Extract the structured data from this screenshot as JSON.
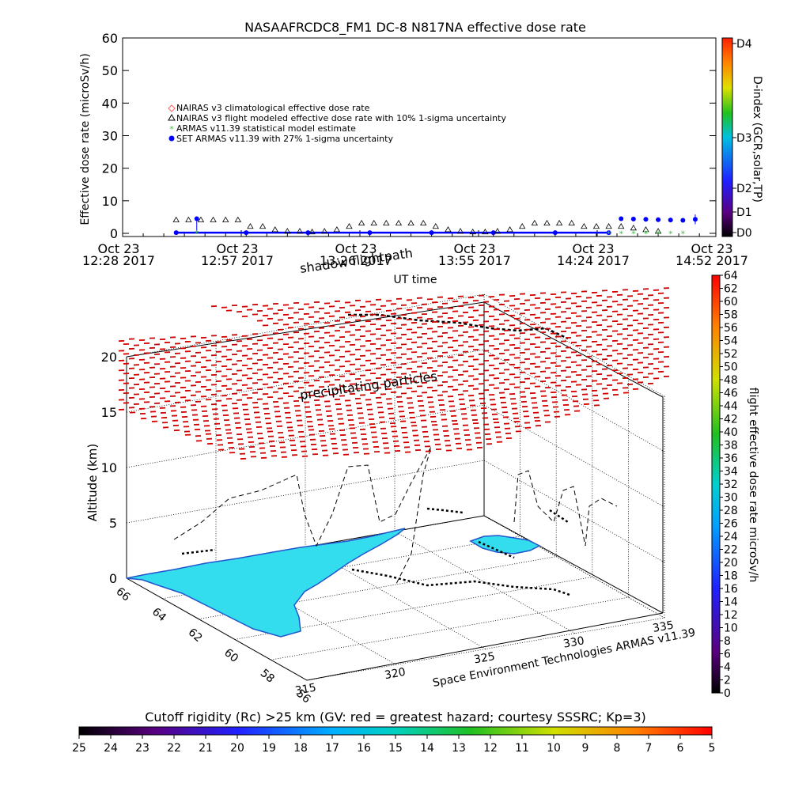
{
  "top_chart": {
    "title": "NASAAFRCDC8_FM1 DC-8    N817NA effective dose rate",
    "ylabel": "Effective dose rate (microSv/h)",
    "xlabel": "UT time",
    "y_ticks": [
      "0",
      "10",
      "20",
      "30",
      "40",
      "50",
      "60"
    ],
    "x_ticks": [
      {
        "line1": "Oct 23",
        "line2": "12:28 2017"
      },
      {
        "line1": "Oct 23",
        "line2": "12:57 2017"
      },
      {
        "line1": "Oct 23",
        "line2": "13:26 2017"
      },
      {
        "line1": "Oct 23",
        "line2": "13:55 2017"
      },
      {
        "line1": "Oct 23",
        "line2": "14:24 2017"
      },
      {
        "line1": "Oct 23",
        "line2": "14:52 2017"
      }
    ],
    "legend": [
      {
        "label": "NAIRAS v3 climatological effective dose rate",
        "color": "#ff6060",
        "marker": "diamond"
      },
      {
        "label": "NAIRAS v3 flight modeled effective dose rate with 10% 1-sigma uncertainty",
        "color": "#000000",
        "marker": "triangle"
      },
      {
        "label": "ARMAS v11.39 statistical model estimate",
        "color": "#40c040",
        "marker": "star"
      },
      {
        "label": "SET ARMAS v11.39 with 27% 1-sigma uncertainty",
        "color": "#0000ff",
        "marker": "dot"
      }
    ],
    "dindex_label": "D-index (GCR,solar,TP)",
    "dindex_ticks": [
      "D0",
      "D1",
      "D2",
      "D3",
      "D4"
    ]
  },
  "chart_data": [
    {
      "type": "scatter",
      "title": "NASAAFRCDC8_FM1 DC-8    N817NA effective dose rate",
      "xlabel": "UT time",
      "ylabel": "Effective dose rate (microSv/h)",
      "ylim": [
        0,
        60
      ],
      "x_tick_labels": [
        "Oct 23 12:28 2017",
        "Oct 23 12:57 2017",
        "Oct 23 13:26 2017",
        "Oct 23 13:55 2017",
        "Oct 23 14:24 2017",
        "Oct 23 14:52 2017"
      ],
      "x_range_minutes": [
        0,
        144
      ],
      "series": [
        {
          "name": "NAIRAS v3 flight modeled effective dose rate with 10% 1-sigma uncertainty",
          "x": [
            13,
            16,
            19,
            22,
            25,
            28,
            31,
            34,
            37,
            40,
            43,
            46,
            49,
            52,
            55,
            58,
            61,
            64,
            67,
            70,
            73,
            76,
            79,
            82,
            85,
            88,
            91,
            94,
            97,
            100,
            103,
            106,
            109,
            112,
            115,
            118,
            121,
            124,
            127,
            130
          ],
          "y": [
            4,
            4,
            4,
            4,
            4,
            4,
            2,
            2,
            1,
            0.5,
            0.5,
            0.3,
            0.5,
            1,
            2,
            3,
            3,
            3,
            3,
            3,
            3,
            2,
            1,
            0.5,
            0.3,
            0.3,
            0.5,
            1,
            2,
            3,
            3,
            3,
            3,
            2,
            2,
            2,
            2,
            1.5,
            1,
            0.5
          ]
        },
        {
          "name": "SET ARMAS v11.39 with 27% 1-sigma uncertainty",
          "x": [
            13,
            18,
            30,
            45,
            60,
            75,
            90,
            105,
            118,
            121,
            124,
            127,
            130,
            133,
            136,
            139
          ],
          "y": [
            0.2,
            4.5,
            0.2,
            0.2,
            0.2,
            0.2,
            0.2,
            0.2,
            0.2,
            4.5,
            4.4,
            4.3,
            4.2,
            4.1,
            4.0,
            4.3
          ]
        },
        {
          "name": "ARMAS v11.39 statistical model estimate",
          "x": [
            18,
            118,
            121,
            124,
            127,
            130,
            133,
            136
          ],
          "y": [
            0.2,
            0.1,
            0.1,
            0.1,
            0.1,
            0.1,
            0.1,
            0.1
          ]
        },
        {
          "name": "NAIRAS v3 climatological effective dose rate",
          "x": [],
          "y": []
        }
      ]
    },
    {
      "type": "surface",
      "title": "Cutoff rigidity (Rc) >25 km (GV: red = greatest hazard; courtesy SSSRC; Kp=3)",
      "ylabel": "Altitude (km)",
      "z_ticks": [
        "0",
        "5",
        "10",
        "15",
        "20"
      ],
      "lat_ticks": [
        "66",
        "64",
        "62",
        "60",
        "58",
        "56"
      ],
      "lon_ticks": [
        "315",
        "320",
        "325",
        "330",
        "335"
      ]
    }
  ],
  "annotations": {
    "shadow_flightpath": "shadow flightpath",
    "precipitating_particles": "precipitating particles",
    "credit": "Space Environment Technologies ARMAS v11.39"
  },
  "right_colorbar": {
    "label": "flight effective dose rate microSv/h",
    "ticks": [
      "0",
      "2",
      "4",
      "6",
      "8",
      "10",
      "12",
      "14",
      "16",
      "18",
      "20",
      "22",
      "24",
      "26",
      "28",
      "30",
      "32",
      "34",
      "36",
      "38",
      "40",
      "42",
      "44",
      "46",
      "48",
      "50",
      "52",
      "54",
      "56",
      "58",
      "60",
      "62",
      "64"
    ]
  },
  "bottom_colorbar": {
    "title": "Cutoff rigidity (Rc) >25 km (GV: red = greatest hazard; courtesy SSSRC; Kp=3)",
    "ticks": [
      "25",
      "24",
      "23",
      "22",
      "21",
      "20",
      "19",
      "18",
      "17",
      "16",
      "15",
      "14",
      "13",
      "12",
      "11",
      "10",
      "9",
      "8",
      "7",
      "6",
      "5"
    ]
  },
  "colors": {
    "nairas_flight": "#000000",
    "set_armas": "#0000ff",
    "armas_model": "#40c040",
    "precip": "#d00000",
    "land": "#33ddee"
  }
}
